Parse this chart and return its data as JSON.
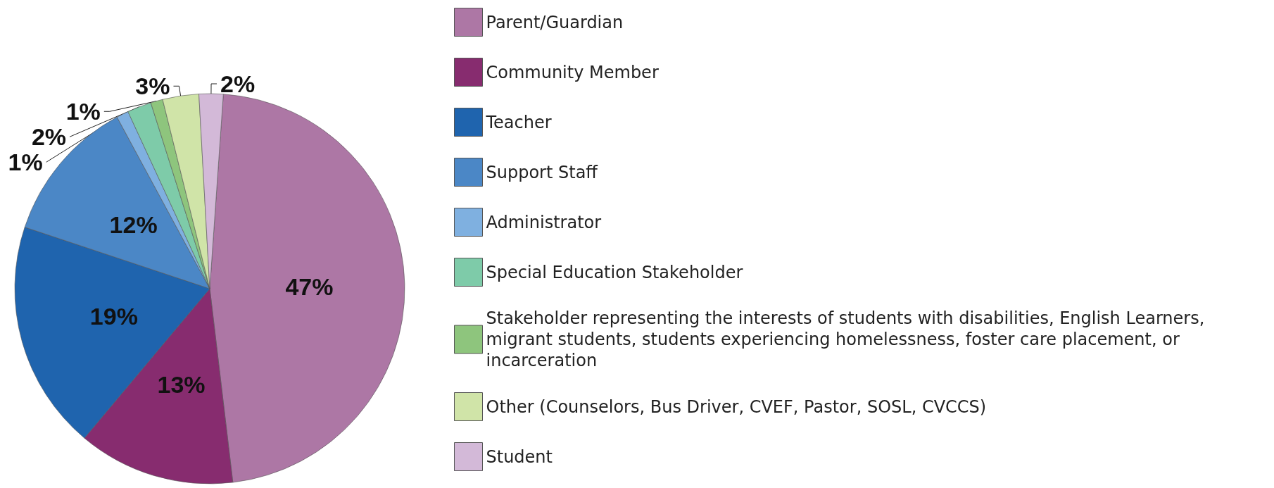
{
  "chart_data": {
    "type": "pie",
    "categories": [
      "Parent/Guardian",
      "Community Member",
      "Teacher",
      "Support Staff",
      "Administrator",
      "Special Education Stakeholder",
      "Stakeholder representing the interests of students with disabilities, English Learners, migrant students, students experiencing homelessness, foster care placement, or incarceration",
      "Other (Counselors, Bus Driver, CVEF, Pastor, SOSL, CVCCS)",
      "Student"
    ],
    "values": [
      47,
      13,
      19,
      12,
      1,
      2,
      1,
      3,
      2
    ],
    "value_labels": [
      "47%",
      "13%",
      "19%",
      "12%",
      "1%",
      "2%",
      "1%",
      "3%",
      "2%"
    ],
    "colors": [
      "#ad77a5",
      "#872c6f",
      "#1f64ae",
      "#4b87c6",
      "#7fb0e0",
      "#7ecba9",
      "#8ec57d",
      "#d0e4a8",
      "#d3b9d8"
    ],
    "legend": "right"
  }
}
